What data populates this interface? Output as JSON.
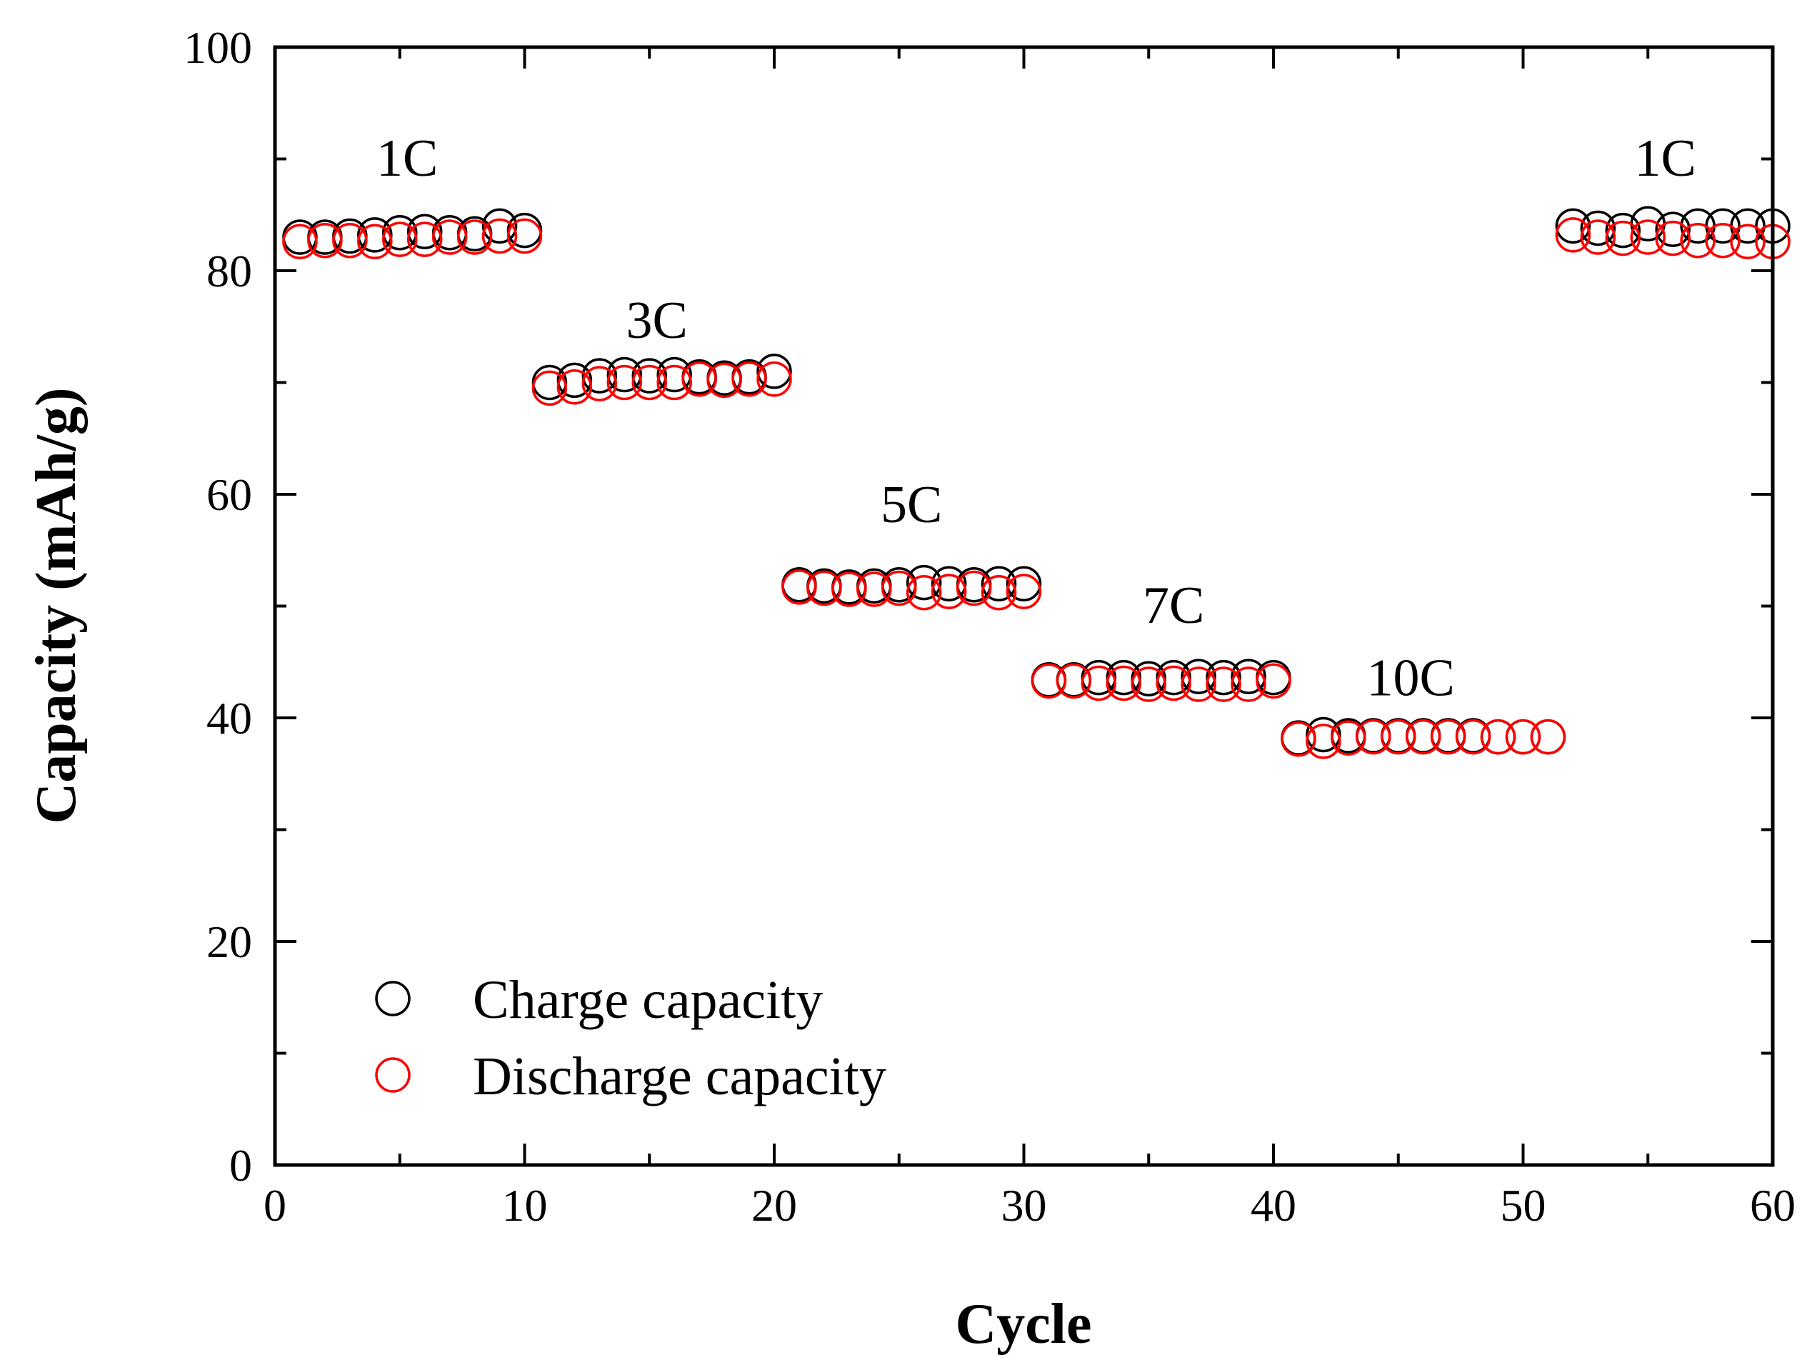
{
  "chart_data": {
    "type": "scatter",
    "title": "",
    "xlabel": "Cycle",
    "ylabel": "Capacity (mAh/g)",
    "xlim": [
      0,
      60
    ],
    "ylim": [
      0,
      100
    ],
    "x_ticks": [
      0,
      10,
      20,
      30,
      40,
      50,
      60
    ],
    "y_ticks": [
      0,
      20,
      40,
      60,
      80,
      100
    ],
    "x_tick_labels": [
      "0",
      "10",
      "20",
      "30",
      "40",
      "50",
      "60"
    ],
    "y_tick_labels": [
      "0",
      "20",
      "40",
      "60",
      "80",
      "100"
    ],
    "grid": false,
    "legend_position": "bottom-left",
    "series": [
      {
        "name": "Charge capacity",
        "color": "#000000",
        "marker": "open-circle",
        "x": [
          1,
          2,
          3,
          4,
          5,
          6,
          7,
          8,
          9,
          10,
          11,
          12,
          13,
          14,
          15,
          16,
          17,
          18,
          19,
          20,
          21,
          22,
          23,
          24,
          25,
          26,
          27,
          28,
          29,
          30,
          31,
          32,
          33,
          34,
          35,
          36,
          37,
          38,
          39,
          40,
          41,
          42,
          43,
          44,
          45,
          46,
          47,
          48,
          49,
          50,
          51,
          52,
          53,
          54,
          55,
          56,
          57,
          58,
          59,
          60
        ],
        "values": [
          83.0,
          83.0,
          83.1,
          83.2,
          83.4,
          83.5,
          83.4,
          83.3,
          84.0,
          83.6,
          70.0,
          70.2,
          70.6,
          70.7,
          70.6,
          70.7,
          70.5,
          70.4,
          70.5,
          71.0,
          51.9,
          51.8,
          51.7,
          51.8,
          51.9,
          52.1,
          52.0,
          51.9,
          52.0,
          52.0,
          43.4,
          43.4,
          43.6,
          43.6,
          43.5,
          43.6,
          43.7,
          43.6,
          43.7,
          43.6,
          38.2,
          38.5,
          38.4,
          38.4,
          38.4,
          38.4,
          38.4,
          38.4,
          38.3,
          38.3,
          38.3,
          84.0,
          83.8,
          83.6,
          84.2,
          83.7,
          84.0,
          84.0,
          84.0,
          84.0
        ]
      },
      {
        "name": "Discharge capacity",
        "color": "#ff0000",
        "marker": "open-circle",
        "x": [
          1,
          2,
          3,
          4,
          5,
          6,
          7,
          8,
          9,
          10,
          11,
          12,
          13,
          14,
          15,
          16,
          17,
          18,
          19,
          20,
          21,
          22,
          23,
          24,
          25,
          26,
          27,
          28,
          29,
          30,
          31,
          32,
          33,
          34,
          35,
          36,
          37,
          38,
          39,
          40,
          41,
          42,
          43,
          44,
          45,
          46,
          47,
          48,
          49,
          50,
          51,
          52,
          53,
          54,
          55,
          56,
          57,
          58,
          59,
          60
        ],
        "values": [
          82.6,
          82.7,
          82.7,
          82.6,
          82.8,
          82.8,
          83.0,
          83.0,
          83.1,
          83.1,
          69.5,
          69.6,
          69.9,
          70.0,
          70.0,
          70.0,
          70.3,
          70.2,
          70.3,
          70.3,
          51.7,
          51.6,
          51.5,
          51.5,
          51.6,
          51.2,
          51.3,
          51.6,
          51.2,
          51.3,
          43.3,
          43.3,
          43.1,
          43.1,
          43.0,
          43.1,
          43.0,
          43.0,
          43.0,
          43.3,
          38.1,
          37.9,
          38.2,
          38.3,
          38.3,
          38.3,
          38.3,
          38.3,
          38.3,
          38.3,
          38.3,
          83.2,
          83.0,
          82.9,
          83.0,
          82.9,
          82.7,
          82.7,
          82.6,
          82.6
        ]
      }
    ],
    "annotations": [
      {
        "text": "1C",
        "x": 5.3,
        "y": 88.5
      },
      {
        "text": "3C",
        "x": 15.3,
        "y": 74.0
      },
      {
        "text": "5C",
        "x": 25.5,
        "y": 57.5
      },
      {
        "text": "7C",
        "x": 36.0,
        "y": 48.5
      },
      {
        "text": "10C",
        "x": 45.5,
        "y": 42.0
      },
      {
        "text": "1C",
        "x": 55.7,
        "y": 88.5
      }
    ]
  }
}
